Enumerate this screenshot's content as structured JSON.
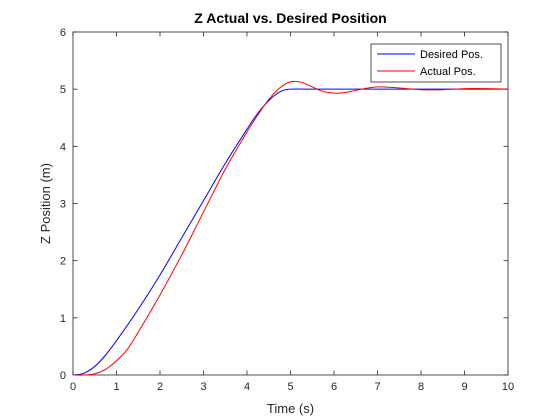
{
  "chart_data": {
    "type": "line",
    "title": "Z Actual vs. Desired Position",
    "xlabel": "Time (s)",
    "ylabel": "Z Position (m)",
    "xlim": [
      0,
      10
    ],
    "ylim": [
      0,
      6
    ],
    "xticks": [
      "0",
      "1",
      "2",
      "3",
      "4",
      "5",
      "6",
      "7",
      "8",
      "9",
      "10"
    ],
    "yticks": [
      "0",
      "1",
      "2",
      "3",
      "4",
      "5",
      "6"
    ],
    "grid": false,
    "legend_position": "top-right",
    "series": [
      {
        "name": "Desired Pos.",
        "color": "#0000ff",
        "x": [
          0,
          0.25,
          0.5,
          0.75,
          1,
          1.5,
          2,
          2.5,
          3,
          3.5,
          4,
          4.25,
          4.5,
          4.75,
          5,
          5.5,
          6,
          7,
          8,
          9,
          10
        ],
        "y": [
          0,
          0.03,
          0.15,
          0.35,
          0.6,
          1.15,
          1.75,
          2.4,
          3.05,
          3.7,
          4.3,
          4.58,
          4.8,
          4.95,
          5.0,
          5.0,
          5.0,
          5.0,
          5.0,
          5.0,
          5.0
        ]
      },
      {
        "name": "Actual Pos.",
        "color": "#ff0000",
        "x": [
          0,
          0.25,
          0.5,
          0.75,
          1,
          1.25,
          1.5,
          2,
          2.5,
          3,
          3.5,
          4,
          4.25,
          4.5,
          4.75,
          5,
          5.25,
          5.5,
          5.75,
          6,
          6.25,
          6.5,
          7,
          7.5,
          8,
          8.5,
          9,
          9.5,
          10
        ],
        "y": [
          0,
          0.0,
          0.02,
          0.1,
          0.25,
          0.45,
          0.75,
          1.4,
          2.1,
          2.85,
          3.6,
          4.25,
          4.55,
          4.82,
          5.02,
          5.13,
          5.12,
          5.04,
          4.96,
          4.93,
          4.94,
          4.98,
          5.04,
          5.02,
          4.99,
          4.99,
          5.01,
          5.01,
          5.0
        ]
      }
    ]
  }
}
